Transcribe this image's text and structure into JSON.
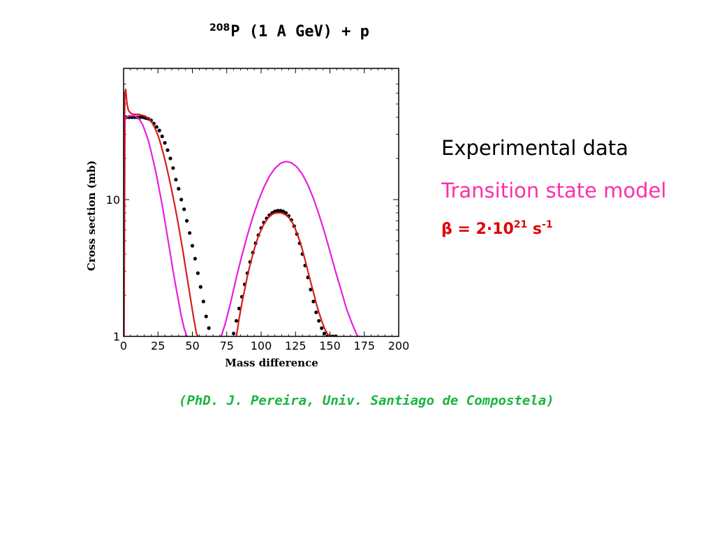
{
  "title": {
    "superscript": "208",
    "text": "P (1 A GeV) + p"
  },
  "legend": {
    "experimental": "Experimental data",
    "model": "Transition state model",
    "beta_prefix": "β = 2·10",
    "beta_exp": "21",
    "beta_unit": " s",
    "beta_unit_exp": "-1"
  },
  "credit": "(PhD. J. Pereira, Univ. Santiago de Compostela)",
  "colors": {
    "experimental": "#000000",
    "model_magenta": "#e81ee0",
    "model_red": "#d41e1e"
  },
  "chart_data": {
    "type": "scatter",
    "xlabel": "Mass difference",
    "ylabel": "Cross section (mb)",
    "xlim": [
      0,
      200
    ],
    "ylim": [
      1,
      70
    ],
    "yscale": "log",
    "xticks": [
      "0",
      "25",
      "50",
      "75",
      "100",
      "125",
      "150",
      "175",
      "200"
    ],
    "yticks": [
      "1",
      "10"
    ],
    "series": [
      {
        "name": "Experimental data",
        "style": "dots",
        "x": [
          2,
          4,
          6,
          8,
          10,
          12,
          14,
          16,
          18,
          20,
          22,
          24,
          26,
          28,
          30,
          32,
          34,
          36,
          38,
          40,
          42,
          44,
          46,
          48,
          50,
          52,
          54,
          56,
          58,
          60,
          62,
          80,
          82,
          84,
          86,
          88,
          90,
          92,
          94,
          96,
          98,
          100,
          102,
          104,
          106,
          108,
          110,
          112,
          114,
          116,
          118,
          120,
          122,
          124,
          126,
          128,
          130,
          132,
          134,
          136,
          138,
          140,
          142,
          144,
          146,
          148,
          150,
          152,
          154
        ],
        "y": [
          40,
          40,
          40,
          40,
          40,
          40,
          40,
          39.5,
          39,
          38,
          36,
          34,
          32,
          29,
          26,
          23,
          20,
          17,
          14,
          12,
          10,
          8.5,
          7,
          5.7,
          4.6,
          3.7,
          2.9,
          2.3,
          1.8,
          1.4,
          1.15,
          1.05,
          1.3,
          1.6,
          1.95,
          2.4,
          2.9,
          3.5,
          4.1,
          4.8,
          5.5,
          6.2,
          6.8,
          7.3,
          7.7,
          8.0,
          8.2,
          8.3,
          8.3,
          8.2,
          8.0,
          7.6,
          7.1,
          6.4,
          5.6,
          4.8,
          4.0,
          3.3,
          2.7,
          2.2,
          1.8,
          1.5,
          1.3,
          1.15,
          1.05,
          1.0,
          1.0,
          1.0,
          1.0
        ]
      },
      {
        "name": "Transition state model",
        "style": "line",
        "color": "#e81ee0",
        "x": [
          0.3,
          1,
          2,
          4,
          6,
          8,
          10,
          12,
          14,
          16,
          18,
          20,
          22,
          24,
          26,
          28,
          30,
          32,
          34,
          36,
          38,
          40,
          42,
          44,
          46,
          47,
          71,
          74,
          78,
          82,
          86,
          90,
          94,
          98,
          102,
          106,
          110,
          114,
          118,
          122,
          126,
          130,
          134,
          138,
          142,
          146,
          150,
          154,
          158,
          162,
          166,
          170,
          172
        ],
        "y": [
          1.0,
          38,
          40,
          41,
          41,
          41,
          40,
          38,
          35,
          31,
          27,
          22.5,
          18.5,
          15,
          11.7,
          9.2,
          7.0,
          5.3,
          4.0,
          3.0,
          2.3,
          1.8,
          1.4,
          1.15,
          1.0,
          0.95,
          0.95,
          1.25,
          1.8,
          2.7,
          3.9,
          5.5,
          7.5,
          9.8,
          12.3,
          14.8,
          16.9,
          18.4,
          19.0,
          18.6,
          17.3,
          15.3,
          12.8,
          10.2,
          7.8,
          5.8,
          4.2,
          3.0,
          2.2,
          1.6,
          1.25,
          1.0,
          0.95
        ]
      },
      {
        "name": "Transition state model",
        "style": "line",
        "color": "#d41e1e",
        "x": [
          0.3,
          0.8,
          1.5,
          2.5,
          3.5,
          5,
          7,
          9,
          11,
          13,
          15,
          17,
          19,
          21,
          23,
          25,
          27,
          29,
          31,
          33,
          35,
          37,
          39,
          41,
          43,
          45,
          47,
          49,
          51,
          53,
          54,
          82,
          84,
          86,
          88,
          90,
          92,
          94,
          96,
          98,
          100,
          102,
          104,
          106,
          108,
          110,
          112,
          114,
          116,
          118,
          120,
          122,
          124,
          126,
          128,
          130,
          132,
          134,
          136,
          138,
          140,
          142,
          144,
          146,
          148,
          150,
          152,
          154
        ],
        "y": [
          1.0,
          60,
          64,
          50,
          45,
          43,
          42,
          42,
          42,
          41.5,
          41,
          40,
          38.5,
          36,
          33,
          29.5,
          25.5,
          21.5,
          17.8,
          14.5,
          11.7,
          9.3,
          7.3,
          5.6,
          4.3,
          3.2,
          2.4,
          1.8,
          1.35,
          1.05,
          0.95,
          1.0,
          1.35,
          1.75,
          2.2,
          2.75,
          3.35,
          4.0,
          4.7,
          5.4,
          6.0,
          6.6,
          7.1,
          7.5,
          7.8,
          7.95,
          8.0,
          8.0,
          7.9,
          7.7,
          7.4,
          7.0,
          6.4,
          5.7,
          5.0,
          4.3,
          3.6,
          3.0,
          2.5,
          2.1,
          1.75,
          1.5,
          1.3,
          1.15,
          1.05,
          1.0,
          0.97,
          0.95
        ]
      }
    ]
  }
}
